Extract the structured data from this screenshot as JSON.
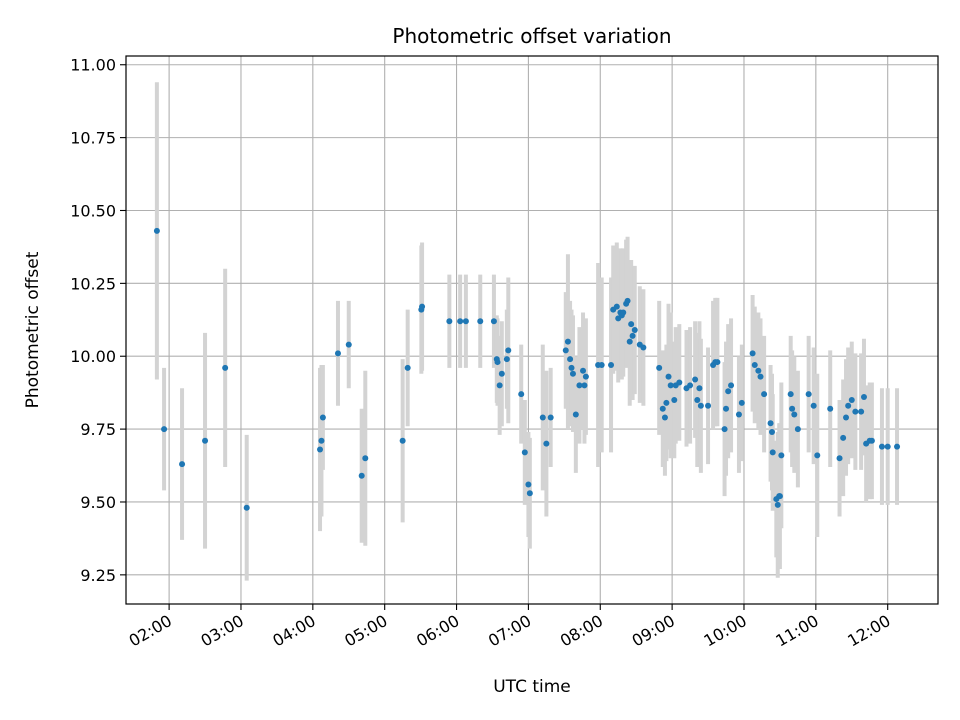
{
  "chart_data": {
    "type": "scatter",
    "title": "Photometric offset variation",
    "xlabel": "UTC time",
    "ylabel": "Photometric offset",
    "x_unit": "hours UTC",
    "xlim": [
      1.4,
      12.7
    ],
    "ylim": [
      9.15,
      11.03
    ],
    "grid": true,
    "x_ticks": [
      {
        "value": 2,
        "label": "02:00"
      },
      {
        "value": 3,
        "label": "03:00"
      },
      {
        "value": 4,
        "label": "04:00"
      },
      {
        "value": 5,
        "label": "05:00"
      },
      {
        "value": 6,
        "label": "06:00"
      },
      {
        "value": 7,
        "label": "07:00"
      },
      {
        "value": 8,
        "label": "08:00"
      },
      {
        "value": 9,
        "label": "09:00"
      },
      {
        "value": 10,
        "label": "10:00"
      },
      {
        "value": 11,
        "label": "11:00"
      },
      {
        "value": 12,
        "label": "12:00"
      }
    ],
    "y_ticks": [
      {
        "value": 9.25,
        "label": "9.25"
      },
      {
        "value": 9.5,
        "label": "9.50"
      },
      {
        "value": 9.75,
        "label": "9.75"
      },
      {
        "value": 10.0,
        "label": "10.00"
      },
      {
        "value": 10.25,
        "label": "10.25"
      },
      {
        "value": 10.5,
        "label": "10.50"
      },
      {
        "value": 10.75,
        "label": "10.75"
      },
      {
        "value": 11.0,
        "label": "11.00"
      }
    ],
    "marker_color": "#1f77b4",
    "errorbar_color": "#d3d3d3",
    "points": [
      [
        1.83,
        10.43,
        0.51
      ],
      [
        1.93,
        9.75,
        0.21
      ],
      [
        2.18,
        9.63,
        0.26
      ],
      [
        2.5,
        9.71,
        0.37
      ],
      [
        2.78,
        9.96,
        0.34
      ],
      [
        3.08,
        9.48,
        0.25
      ],
      [
        4.1,
        9.68,
        0.28
      ],
      [
        4.12,
        9.71,
        0.26
      ],
      [
        4.14,
        9.79,
        0.18
      ],
      [
        4.35,
        10.01,
        0.18
      ],
      [
        4.5,
        10.04,
        0.15
      ],
      [
        4.68,
        9.59,
        0.23
      ],
      [
        4.73,
        9.65,
        0.3
      ],
      [
        5.25,
        9.71,
        0.28
      ],
      [
        5.32,
        9.96,
        0.2
      ],
      [
        5.51,
        10.16,
        0.22
      ],
      [
        5.52,
        10.17,
        0.22
      ],
      [
        5.9,
        10.12,
        0.16
      ],
      [
        6.05,
        10.12,
        0.16
      ],
      [
        6.13,
        10.12,
        0.16
      ],
      [
        6.33,
        10.12,
        0.16
      ],
      [
        6.52,
        10.12,
        0.16
      ],
      [
        6.56,
        9.99,
        0.15
      ],
      [
        6.57,
        9.98,
        0.15
      ],
      [
        6.6,
        9.9,
        0.17
      ],
      [
        6.63,
        9.94,
        0.18
      ],
      [
        6.7,
        9.99,
        0.17
      ],
      [
        6.72,
        10.02,
        0.25
      ],
      [
        6.9,
        9.87,
        0.17
      ],
      [
        6.95,
        9.67,
        0.18
      ],
      [
        7.0,
        9.56,
        0.18
      ],
      [
        7.02,
        9.53,
        0.19
      ],
      [
        7.2,
        9.79,
        0.25
      ],
      [
        7.25,
        9.7,
        0.25
      ],
      [
        7.31,
        9.79,
        0.17
      ],
      [
        7.52,
        10.02,
        0.2
      ],
      [
        7.55,
        10.05,
        0.3
      ],
      [
        7.58,
        9.99,
        0.2
      ],
      [
        7.6,
        9.96,
        0.2
      ],
      [
        7.62,
        9.94,
        0.2
      ],
      [
        7.66,
        9.8,
        0.2
      ],
      [
        7.71,
        9.9,
        0.2
      ],
      [
        7.76,
        9.95,
        0.2
      ],
      [
        7.78,
        9.9,
        0.2
      ],
      [
        7.8,
        9.93,
        0.2
      ],
      [
        7.97,
        9.97,
        0.35
      ],
      [
        8.02,
        9.97,
        0.3
      ],
      [
        8.15,
        9.97,
        0.3
      ],
      [
        8.18,
        10.16,
        0.22
      ],
      [
        8.23,
        10.17,
        0.22
      ],
      [
        8.25,
        10.13,
        0.22
      ],
      [
        8.28,
        10.15,
        0.22
      ],
      [
        8.3,
        10.14,
        0.22
      ],
      [
        8.32,
        10.15,
        0.22
      ],
      [
        8.36,
        10.18,
        0.22
      ],
      [
        8.38,
        10.19,
        0.22
      ],
      [
        8.41,
        10.05,
        0.22
      ],
      [
        8.43,
        10.11,
        0.22
      ],
      [
        8.45,
        10.07,
        0.22
      ],
      [
        8.48,
        10.09,
        0.22
      ],
      [
        8.55,
        10.04,
        0.2
      ],
      [
        8.6,
        10.03,
        0.2
      ],
      [
        8.82,
        9.96,
        0.23
      ],
      [
        8.87,
        9.82,
        0.2
      ],
      [
        8.9,
        9.79,
        0.2
      ],
      [
        8.92,
        9.84,
        0.2
      ],
      [
        8.95,
        9.93,
        0.25
      ],
      [
        8.98,
        9.9,
        0.25
      ],
      [
        9.03,
        9.85,
        0.2
      ],
      [
        9.05,
        9.9,
        0.2
      ],
      [
        9.1,
        9.91,
        0.2
      ],
      [
        9.2,
        9.89,
        0.2
      ],
      [
        9.25,
        9.9,
        0.2
      ],
      [
        9.32,
        9.92,
        0.2
      ],
      [
        9.35,
        9.85,
        0.23
      ],
      [
        9.38,
        9.89,
        0.23
      ],
      [
        9.4,
        9.83,
        0.23
      ],
      [
        9.5,
        9.83,
        0.2
      ],
      [
        9.57,
        9.97,
        0.22
      ],
      [
        9.6,
        9.98,
        0.22
      ],
      [
        9.63,
        9.98,
        0.22
      ],
      [
        9.73,
        9.75,
        0.23
      ],
      [
        9.75,
        9.82,
        0.23
      ],
      [
        9.78,
        9.88,
        0.23
      ],
      [
        9.82,
        9.9,
        0.23
      ],
      [
        9.93,
        9.8,
        0.2
      ],
      [
        9.97,
        9.84,
        0.2
      ],
      [
        10.12,
        10.01,
        0.2
      ],
      [
        10.15,
        9.97,
        0.2
      ],
      [
        10.2,
        9.95,
        0.2
      ],
      [
        10.23,
        9.93,
        0.2
      ],
      [
        10.28,
        9.87,
        0.2
      ],
      [
        10.37,
        9.77,
        0.2
      ],
      [
        10.39,
        9.74,
        0.2
      ],
      [
        10.4,
        9.67,
        0.2
      ],
      [
        10.45,
        9.51,
        0.2
      ],
      [
        10.47,
        9.49,
        0.25
      ],
      [
        10.49,
        9.52,
        0.25
      ],
      [
        10.5,
        9.52,
        0.25
      ],
      [
        10.52,
        9.66,
        0.25
      ],
      [
        10.65,
        9.87,
        0.2
      ],
      [
        10.67,
        9.82,
        0.2
      ],
      [
        10.7,
        9.8,
        0.2
      ],
      [
        10.75,
        9.75,
        0.2
      ],
      [
        10.9,
        9.87,
        0.2
      ],
      [
        10.97,
        9.83,
        0.2
      ],
      [
        11.02,
        9.66,
        0.28
      ],
      [
        11.2,
        9.82,
        0.2
      ],
      [
        11.33,
        9.65,
        0.2
      ],
      [
        11.38,
        9.72,
        0.2
      ],
      [
        11.42,
        9.79,
        0.2
      ],
      [
        11.45,
        9.83,
        0.2
      ],
      [
        11.5,
        9.85,
        0.2
      ],
      [
        11.55,
        9.81,
        0.2
      ],
      [
        11.63,
        9.81,
        0.2
      ],
      [
        11.67,
        9.86,
        0.2
      ],
      [
        11.7,
        9.7,
        0.2
      ],
      [
        11.75,
        9.71,
        0.2
      ],
      [
        11.78,
        9.71,
        0.2
      ],
      [
        11.92,
        9.69,
        0.2
      ],
      [
        12.0,
        9.69,
        0.2
      ],
      [
        12.13,
        9.69,
        0.2
      ]
    ]
  }
}
